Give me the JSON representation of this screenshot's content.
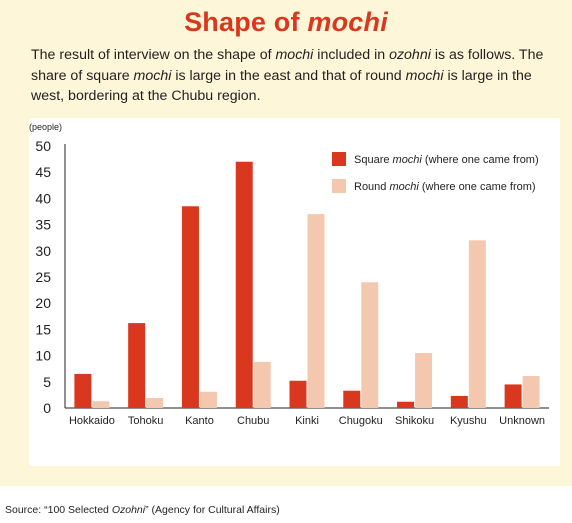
{
  "title": {
    "main": "Shape of ",
    "emph": "mochi"
  },
  "intro": [
    {
      "t": "The result of interview on the shape of ",
      "i": false
    },
    {
      "t": "mochi",
      "i": true
    },
    {
      "t": " included in ",
      "i": false
    },
    {
      "t": "ozohni",
      "i": true
    },
    {
      "t": " is as follows. The share of square ",
      "i": false
    },
    {
      "t": "mochi",
      "i": true
    },
    {
      "t": " is large in the east and that of round ",
      "i": false
    },
    {
      "t": "mochi",
      "i": true
    },
    {
      "t": " is large in the west, bordering at the Chubu region.",
      "i": false
    }
  ],
  "source": [
    {
      "t": "Source: “100 Selected ",
      "i": false
    },
    {
      "t": "Ozohni",
      "i": true
    },
    {
      "t": "” (Agency for Cultural Affairs)",
      "i": false
    }
  ],
  "colors": {
    "square": "#d9381e",
    "round": "#f4c8ae",
    "title": "#d9381e",
    "panel": "#fdf6d8"
  },
  "chart_data": {
    "type": "bar",
    "ylabel": "(people)",
    "ylim": [
      0,
      50
    ],
    "yticks": [
      0,
      5,
      10,
      15,
      20,
      25,
      30,
      35,
      40,
      45,
      50
    ],
    "grid": false,
    "legend_position": "top-right",
    "categories": [
      "Hokkaido",
      "Tohoku",
      "Kanto",
      "Chubu",
      "Kinki",
      "Chugoku",
      "Shikoku",
      "Kyushu",
      "Unknown"
    ],
    "series": [
      {
        "name_parts": [
          {
            "t": "Square ",
            "i": false
          },
          {
            "t": "mochi",
            "i": true
          },
          {
            "t": " (where one came from)",
            "i": false
          }
        ],
        "values": [
          6.5,
          16.2,
          38.5,
          47,
          5.2,
          3.3,
          1.2,
          2.3,
          4.5
        ]
      },
      {
        "name_parts": [
          {
            "t": "Round ",
            "i": false
          },
          {
            "t": "mochi",
            "i": true
          },
          {
            "t": " (where one came from)",
            "i": false
          }
        ],
        "values": [
          1.3,
          1.9,
          3.1,
          8.8,
          37,
          24,
          10.5,
          32,
          6.1
        ]
      }
    ]
  }
}
